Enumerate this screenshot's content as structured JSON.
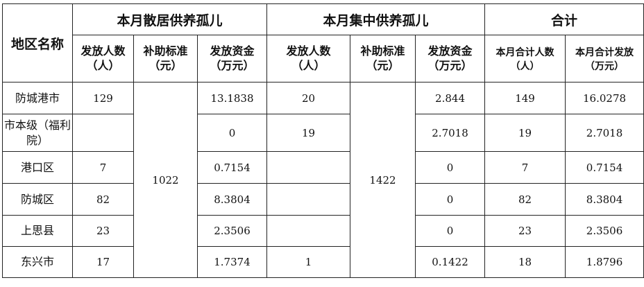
{
  "header": {
    "region": "地区名称",
    "groups": [
      "本月散居供养孤儿",
      "本月集中供养孤儿",
      "合计"
    ],
    "subcols": [
      [
        "发放人数",
        "（人）"
      ],
      [
        "补助标准",
        "（元）"
      ],
      [
        "发放资金",
        "（万元）"
      ],
      [
        "发放人数",
        "（人）"
      ],
      [
        "补助标准",
        "（元）"
      ],
      [
        "发放资金",
        "（万元）"
      ],
      [
        "本月合计人数",
        "（人）"
      ],
      [
        "本月合计发放",
        "（万元）"
      ]
    ]
  },
  "standards": {
    "scattered": "1022",
    "centralized": "1422"
  },
  "rows": [
    {
      "region": "防城港市",
      "s_count": "129",
      "s_fund": "13.1838",
      "c_count": "20",
      "c_fund": "2.844",
      "t_count": "149",
      "t_fund": "16.0278"
    },
    {
      "region": "市本级（福利院）",
      "s_count": "",
      "s_fund": "0",
      "c_count": "19",
      "c_fund": "2.7018",
      "t_count": "19",
      "t_fund": "2.7018"
    },
    {
      "region": "港口区",
      "s_count": "7",
      "s_fund": "0.7154",
      "c_count": "",
      "c_fund": "0",
      "t_count": "7",
      "t_fund": "0.7154"
    },
    {
      "region": "防城区",
      "s_count": "82",
      "s_fund": "8.3804",
      "c_count": "",
      "c_fund": "0",
      "t_count": "82",
      "t_fund": "8.3804"
    },
    {
      "region": "上思县",
      "s_count": "23",
      "s_fund": "2.3506",
      "c_count": "",
      "c_fund": "0",
      "t_count": "23",
      "t_fund": "2.3506"
    },
    {
      "region": "东兴市",
      "s_count": "17",
      "s_fund": "1.7374",
      "c_count": "1",
      "c_fund": "0.1422",
      "t_count": "18",
      "t_fund": "1.8796"
    }
  ]
}
